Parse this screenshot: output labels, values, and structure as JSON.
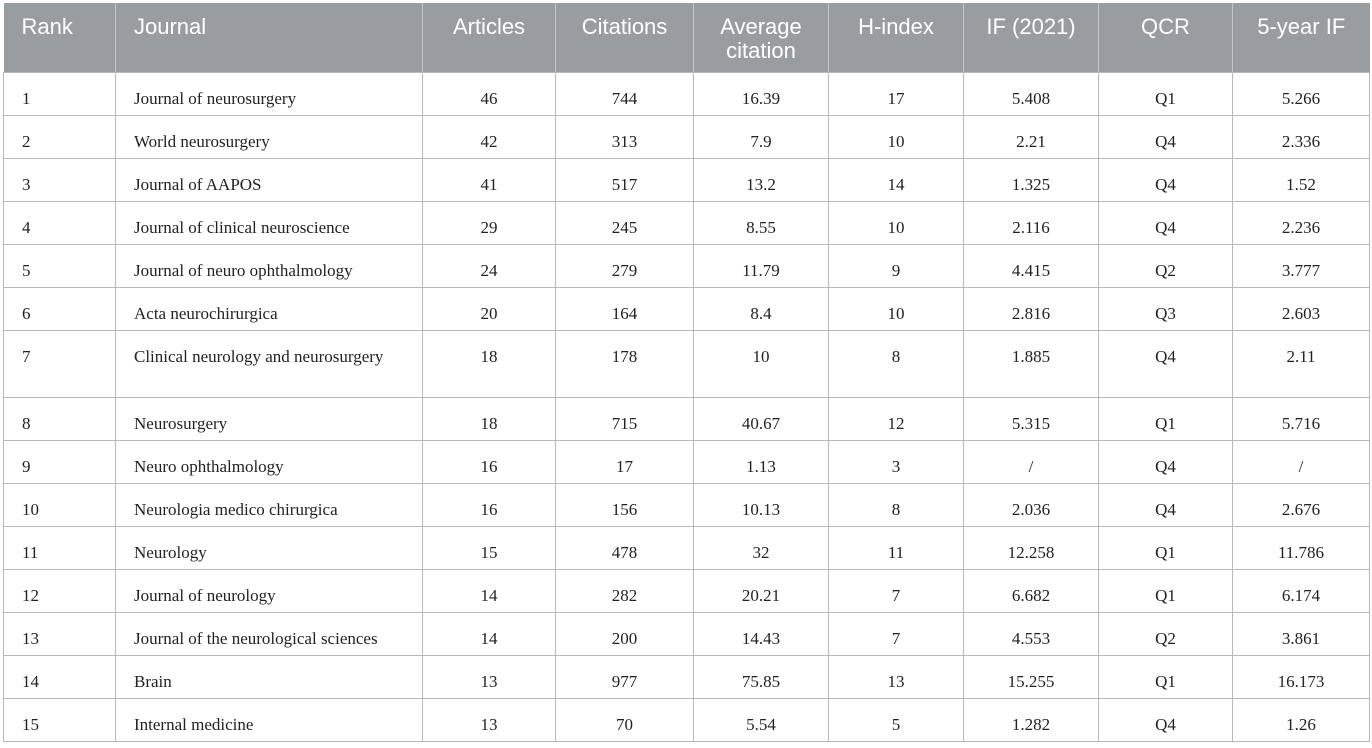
{
  "columns": [
    "Rank",
    "Journal",
    "Articles",
    "Citations",
    "Average citation",
    "H-index",
    "IF (2021)",
    "QCR",
    "5-year IF"
  ],
  "rows": [
    [
      "1",
      "Journal of neurosurgery",
      "46",
      "744",
      "16.39",
      "17",
      "5.408",
      "Q1",
      "5.266"
    ],
    [
      "2",
      "World neurosurgery",
      "42",
      "313",
      "7.9",
      "10",
      "2.21",
      "Q4",
      "2.336"
    ],
    [
      "3",
      "Journal of AAPOS",
      "41",
      "517",
      "13.2",
      "14",
      "1.325",
      "Q4",
      "1.52"
    ],
    [
      "4",
      "Journal of clinical neuroscience",
      "29",
      "245",
      "8.55",
      "10",
      "2.116",
      "Q4",
      "2.236"
    ],
    [
      "5",
      "Journal of neuro ophthalmology",
      "24",
      "279",
      "11.79",
      "9",
      "4.415",
      "Q2",
      "3.777"
    ],
    [
      "6",
      "Acta neurochirurgica",
      "20",
      "164",
      "8.4",
      "10",
      "2.816",
      "Q3",
      "2.603"
    ],
    [
      "7",
      "Clinical neurology and neurosurgery",
      "18",
      "178",
      "10",
      "8",
      "1.885",
      "Q4",
      "2.11"
    ],
    [
      "8",
      "Neurosurgery",
      "18",
      "715",
      "40.67",
      "12",
      "5.315",
      "Q1",
      "5.716"
    ],
    [
      "9",
      "Neuro ophthalmology",
      "16",
      "17",
      "1.13",
      "3",
      "/",
      "Q4",
      "/"
    ],
    [
      "10",
      "Neurologia medico chirurgica",
      "16",
      "156",
      "10.13",
      "8",
      "2.036",
      "Q4",
      "2.676"
    ],
    [
      "11",
      "Neurology",
      "15",
      "478",
      "32",
      "11",
      "12.258",
      "Q1",
      "11.786"
    ],
    [
      "12",
      "Journal of neurology",
      "14",
      "282",
      "20.21",
      "7",
      "6.682",
      "Q1",
      "6.174"
    ],
    [
      "13",
      "Journal of the neurological sciences",
      "14",
      "200",
      "14.43",
      "7",
      "4.553",
      "Q2",
      "3.861"
    ],
    [
      "14",
      "Brain",
      "13",
      "977",
      "75.85",
      "13",
      "15.255",
      "Q1",
      "16.173"
    ],
    [
      "15",
      "Internal medicine",
      "13",
      "70",
      "5.54",
      "5",
      "1.282",
      "Q4",
      "1.26"
    ]
  ],
  "colors": {
    "header_bg": "#999da0",
    "header_text": "#ffffff",
    "grid": "#b8b8b8",
    "body_text": "#222222"
  }
}
